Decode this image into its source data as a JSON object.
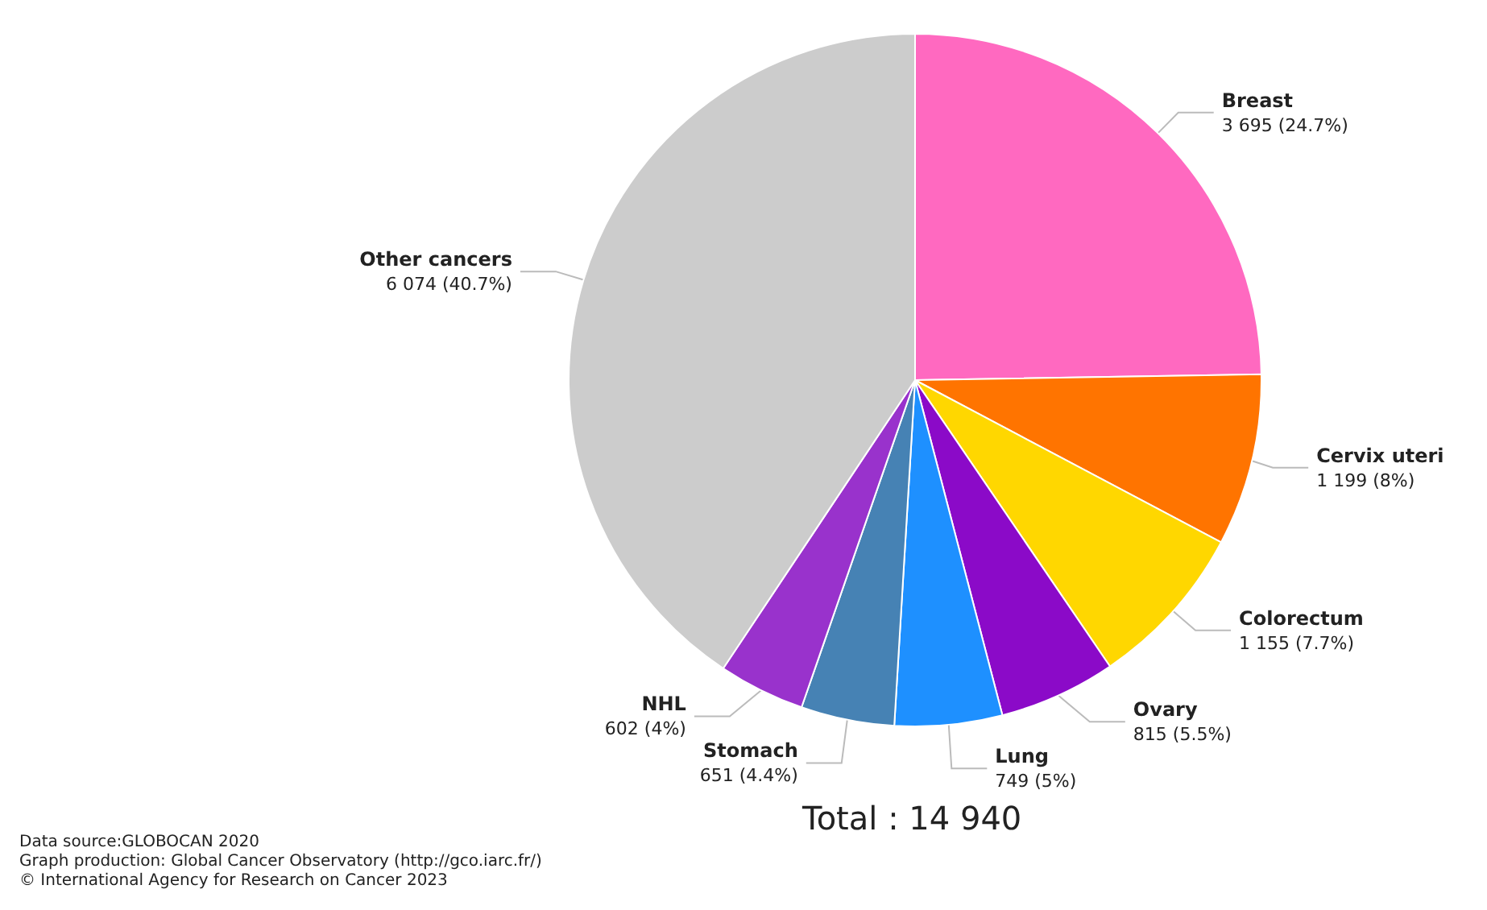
{
  "chart_data": {
    "type": "pie",
    "categories": [
      "Breast",
      "Cervix uteri",
      "Colorectum",
      "Ovary",
      "Lung",
      "Stomach",
      "NHL",
      "Other cancers"
    ],
    "values": [
      3695,
      1199,
      1155,
      815,
      749,
      651,
      602,
      6074
    ],
    "value_labels": [
      "3 695 (24.7%)",
      "1 199 (8%)",
      "1 155 (7.7%)",
      "815 (5.5%)",
      "749 (5%)",
      "651 (4.4%)",
      "602 (4%)",
      "6 074 (40.7%)"
    ],
    "colors": [
      "#ff69c0",
      "#ff7400",
      "#ffd700",
      "#8b0ac8",
      "#1e90ff",
      "#4682b4",
      "#9932cc",
      "#cccccc"
    ],
    "annotations": [
      "Total : 14 940",
      "Data source:GLOBOCAN 2020",
      "Graph production: Global Cancer Observatory (http://gco.iarc.fr/)",
      "© International Agency for Research on Cancer 2023"
    ]
  }
}
